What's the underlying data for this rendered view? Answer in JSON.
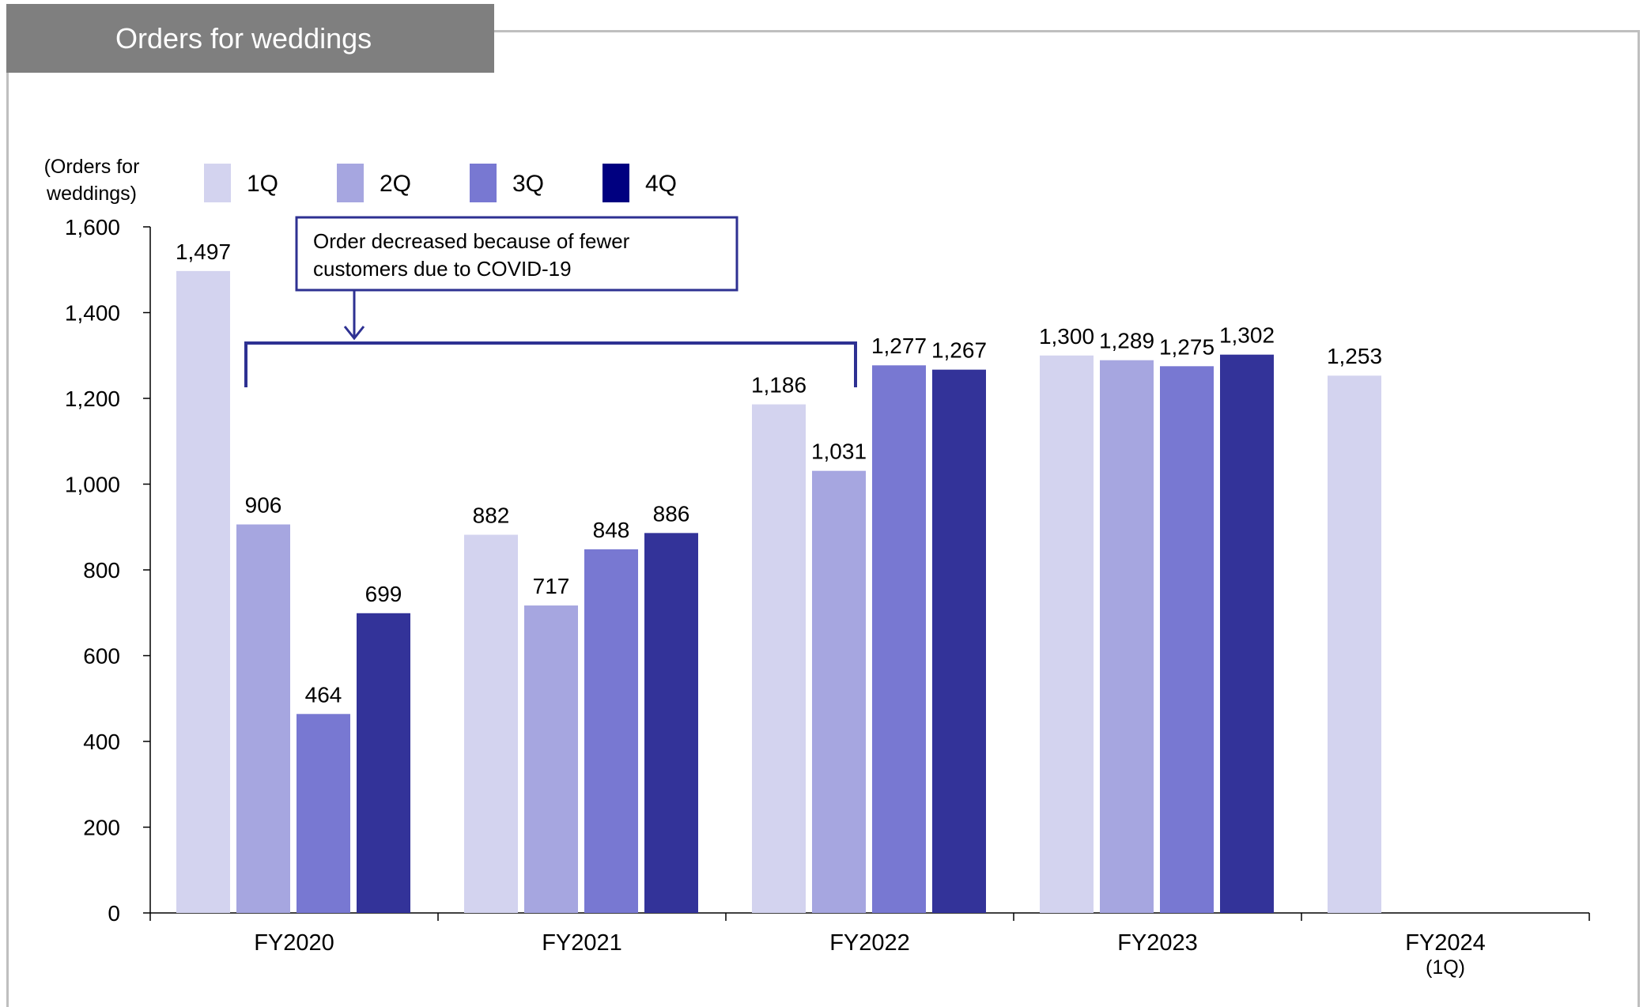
{
  "panel_title": "Orders for weddings",
  "chart_data": {
    "type": "bar",
    "title": "Orders for weddings",
    "ylabel": "(Orders for weddings)",
    "ylabel_lines": [
      "(Orders for",
      "weddings)"
    ],
    "ylim": [
      0,
      1600
    ],
    "yticks": [
      0,
      200,
      400,
      600,
      800,
      1000,
      1200,
      1400,
      1600
    ],
    "ytick_labels": [
      "0",
      "200",
      "400",
      "600",
      "800",
      "1,000",
      "1,200",
      "1,400",
      "1,600"
    ],
    "categories": [
      "FY2020",
      "FY2021",
      "FY2022",
      "FY2023",
      "FY2024"
    ],
    "category_sublabels": [
      "",
      "",
      "",
      "",
      "(1Q)"
    ],
    "series": [
      {
        "name": "1Q",
        "color": "#d3d3ef",
        "values": [
          1497,
          882,
          1186,
          1300,
          1253
        ],
        "labels": [
          "1,497",
          "882",
          "1,186",
          "1,300",
          "1,253"
        ]
      },
      {
        "name": "2Q",
        "color": "#a6a6e0",
        "values": [
          906,
          717,
          1031,
          1289,
          null
        ],
        "labels": [
          "906",
          "717",
          "1,031",
          "1,289",
          ""
        ]
      },
      {
        "name": "3Q",
        "color": "#7878d2",
        "values": [
          464,
          848,
          1277,
          1275,
          null
        ],
        "labels": [
          "464",
          "848",
          "1,277",
          "1,275",
          ""
        ]
      },
      {
        "name": "4Q",
        "color": "#333399",
        "values": [
          699,
          886,
          1267,
          1302,
          null
        ],
        "labels": [
          "699",
          "886",
          "1,267",
          "1,302",
          ""
        ]
      }
    ],
    "legend_swatch_colors": [
      "#d3d3ef",
      "#a6a6e0",
      "#7878d2",
      "#000080"
    ],
    "legend_position": "top-left",
    "grid": false,
    "annotation": {
      "lines": [
        "Order decreased because of fewer",
        "customers due to COVID-19"
      ],
      "color": "#2e3192"
    }
  }
}
